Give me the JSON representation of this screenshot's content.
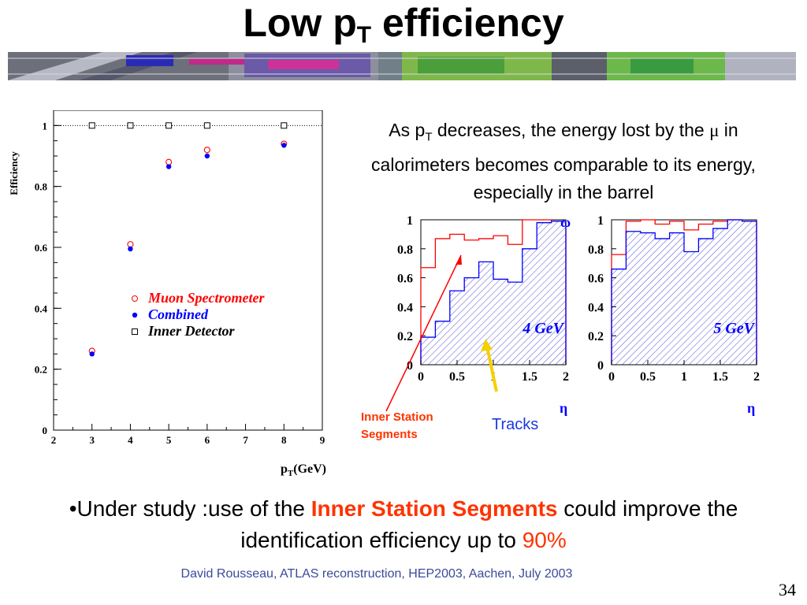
{
  "slide": {
    "title_main": "Low p",
    "title_sub": "T",
    "title_rest": " efficiency",
    "desc_part1": "As p",
    "desc_sub": "T",
    "desc_part2": " decreases, the energy lost by the ",
    "desc_mu": "μ",
    "desc_part3": " in calorimeters becomes comparable to its energy, especially in the barrel",
    "bottom_part1": "•Under study :use of the ",
    "bottom_highlight": "Inner Station Segments",
    "bottom_part2": " could improve the identification efficiency up  to ",
    "bottom_percent": "90%",
    "footer": "David Rousseau, ATLAS reconstruction, HEP2003, Aachen,  July 2003",
    "page_number": "34",
    "annotation_iss": "Inner Station Segments",
    "annotation_tracks": "Tracks"
  },
  "colors": {
    "red": "#ff0000",
    "blue": "#0000ff",
    "accent_orange": "#ff3300",
    "arrow_yellow": "#f5d000",
    "footer_blue": "#3b4a9a"
  },
  "chart_data": [
    {
      "type": "scatter",
      "xlabel": "p_T(GeV)",
      "ylabel": "Efficiency",
      "xlim": [
        2,
        9
      ],
      "ylim": [
        0,
        1.05
      ],
      "x_ticks": [
        "2",
        "3",
        "4",
        "5",
        "6",
        "7",
        "8",
        "9"
      ],
      "y_ticks": [
        "0",
        "0.2",
        "0.4",
        "0.6",
        "0.8",
        "1"
      ],
      "reference_line": 1,
      "legend": [
        "Muon Spectrometer",
        "Combined",
        "Inner Detector"
      ],
      "legend_position": "center",
      "series": [
        {
          "name": "Muon Spectrometer",
          "marker": "open-circle",
          "color": "#ff0000",
          "x": [
            3,
            4,
            5,
            6,
            8
          ],
          "y": [
            0.26,
            0.61,
            0.88,
            0.92,
            0.94
          ]
        },
        {
          "name": "Combined",
          "marker": "filled-circle",
          "color": "#0000ff",
          "x": [
            3,
            4,
            5,
            6,
            8
          ],
          "y": [
            0.25,
            0.595,
            0.865,
            0.9,
            0.935
          ]
        },
        {
          "name": "Inner Detector",
          "marker": "open-square",
          "color": "#000000",
          "x": [
            3,
            4,
            5,
            6,
            8
          ],
          "y": [
            1,
            1,
            1,
            1,
            1
          ]
        }
      ]
    },
    {
      "type": "histogram",
      "label": "4 GeV",
      "xlabel": "η",
      "xlim": [
        0,
        2
      ],
      "ylim": [
        0,
        1
      ],
      "x_ticks": [
        "0",
        "0.5",
        "1",
        "1.5",
        "2"
      ],
      "y_ticks": [
        "0",
        "0.2",
        "0.4",
        "0.6",
        "0.8",
        "1"
      ],
      "bin_edges": [
        0,
        0.2,
        0.4,
        0.6,
        0.8,
        1.0,
        1.2,
        1.4,
        1.6,
        1.8,
        2.0
      ],
      "series": [
        {
          "name": "Inner Station Segments",
          "color": "#ff0000",
          "values": [
            0.67,
            0.87,
            0.9,
            0.86,
            0.87,
            0.89,
            0.83,
            1.0,
            1.0,
            0.99
          ]
        },
        {
          "name": "Tracks",
          "color": "#0000ff",
          "values": [
            0.19,
            0.3,
            0.51,
            0.6,
            0.71,
            0.59,
            0.57,
            0.8,
            0.98,
            0.99
          ]
        }
      ]
    },
    {
      "type": "histogram",
      "label": "5 GeV",
      "xlabel": "η",
      "xlim": [
        0,
        2
      ],
      "ylim": [
        0,
        1
      ],
      "x_ticks": [
        "0",
        "0.5",
        "1",
        "1.5",
        "2"
      ],
      "y_ticks": [
        "0",
        "0.2",
        "0.4",
        "0.6",
        "0.8",
        "1"
      ],
      "bin_edges": [
        0,
        0.2,
        0.4,
        0.6,
        0.8,
        1.0,
        1.2,
        1.4,
        1.6,
        1.8,
        2.0
      ],
      "series": [
        {
          "name": "Inner Station Segments",
          "color": "#ff0000",
          "values": [
            0.76,
            0.99,
            1.0,
            0.97,
            0.99,
            0.93,
            0.97,
            0.99,
            1.0,
            0.99
          ]
        },
        {
          "name": "Tracks",
          "color": "#0000ff",
          "values": [
            0.66,
            0.92,
            0.91,
            0.87,
            0.91,
            0.78,
            0.87,
            0.94,
            1.0,
            0.99
          ]
        }
      ]
    }
  ]
}
